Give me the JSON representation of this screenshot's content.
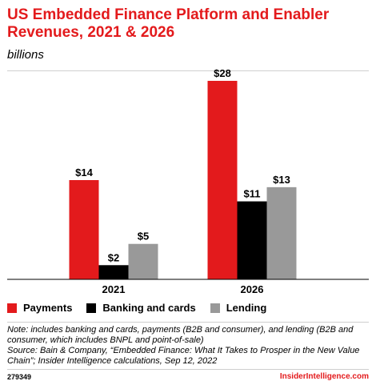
{
  "header": {
    "title": "US Embedded Finance Platform and Enabler Revenues, 2021 & 2026",
    "subtitle": "billions"
  },
  "chart_data": {
    "type": "bar",
    "categories": [
      "2021",
      "2026"
    ],
    "series": [
      {
        "name": "Payments",
        "values": [
          14,
          28
        ],
        "labels": [
          "$14",
          "$28"
        ],
        "color": "#e31a1c"
      },
      {
        "name": "Banking and cards",
        "values": [
          2,
          11
        ],
        "labels": [
          "$2",
          "$11"
        ],
        "color": "#000000"
      },
      {
        "name": "Lending",
        "values": [
          5,
          13
        ],
        "labels": [
          "$5",
          "$13"
        ],
        "color": "#999999"
      }
    ],
    "ylim": [
      0,
      28
    ],
    "grid": false,
    "legend_position": "bottom"
  },
  "notes": {
    "note": "Note: includes banking and cards, payments (B2B and consumer), and lending (B2B and consumer, which includes BNPL and point-of-sale)",
    "source": "Source: Bain & Company, “Embedded Finance: What It Takes to Prosper in the New Value Chain”; Insider Intelligence calculations, Sep 12, 2022"
  },
  "footer": {
    "chart_id": "279349",
    "brand": "InsiderIntelligence.com"
  }
}
